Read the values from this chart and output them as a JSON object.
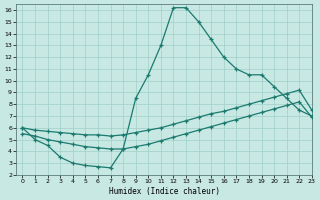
{
  "xlabel": "Humidex (Indice chaleur)",
  "xlim": [
    -0.5,
    23
  ],
  "ylim": [
    2,
    16.5
  ],
  "xticks": [
    0,
    1,
    2,
    3,
    4,
    5,
    6,
    7,
    8,
    9,
    10,
    11,
    12,
    13,
    14,
    15,
    16,
    17,
    18,
    19,
    20,
    21,
    22,
    23
  ],
  "yticks": [
    2,
    3,
    4,
    5,
    6,
    7,
    8,
    9,
    10,
    11,
    12,
    13,
    14,
    15,
    16
  ],
  "bg_color": "#c8e8e4",
  "line_color": "#1a7a6e",
  "grid_color": "#a0cfc8",
  "curve1_x": [
    0,
    1,
    2,
    3,
    4,
    5,
    6,
    7,
    8,
    9,
    10,
    11,
    12,
    13,
    14,
    15,
    16,
    17,
    18,
    19,
    20,
    21,
    22,
    23
  ],
  "curve1_y": [
    6.0,
    5.0,
    4.5,
    3.5,
    3.0,
    2.8,
    2.7,
    2.6,
    4.2,
    8.5,
    10.5,
    13.0,
    16.2,
    16.2,
    15.0,
    13.5,
    12.0,
    11.0,
    10.5,
    10.5,
    9.5,
    8.5,
    7.5,
    7.0
  ],
  "curve2_x": [
    0,
    1,
    2,
    3,
    4,
    5,
    6,
    7,
    8,
    9,
    10,
    11,
    12,
    13,
    14,
    15,
    16,
    17,
    18,
    19,
    20,
    21,
    22,
    23
  ],
  "curve2_y": [
    6.0,
    5.8,
    5.7,
    5.6,
    5.5,
    5.4,
    5.4,
    5.3,
    5.4,
    5.6,
    5.8,
    6.0,
    6.3,
    6.6,
    6.9,
    7.2,
    7.4,
    7.7,
    8.0,
    8.3,
    8.6,
    8.9,
    9.2,
    7.5
  ],
  "curve3_x": [
    0,
    1,
    2,
    3,
    4,
    5,
    6,
    7,
    8,
    9,
    10,
    11,
    12,
    13,
    14,
    15,
    16,
    17,
    18,
    19,
    20,
    21,
    22,
    23
  ],
  "curve3_y": [
    5.5,
    5.3,
    5.0,
    4.8,
    4.6,
    4.4,
    4.3,
    4.2,
    4.2,
    4.4,
    4.6,
    4.9,
    5.2,
    5.5,
    5.8,
    6.1,
    6.4,
    6.7,
    7.0,
    7.3,
    7.6,
    7.9,
    8.2,
    6.9
  ]
}
